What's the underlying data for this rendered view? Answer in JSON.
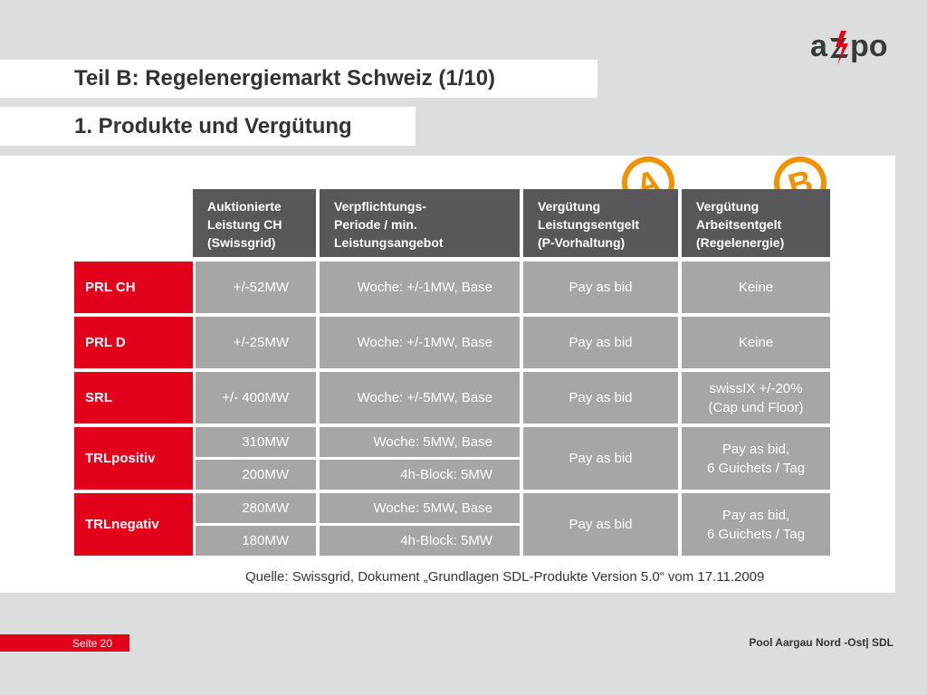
{
  "brand": {
    "logo_text": "axpo",
    "red": "#e2001a",
    "dark": "#58585a",
    "cell_gray": "#a6a6a6",
    "badge_orange": "#f39200"
  },
  "title": "Teil B:  Regelenergiemarkt Schweiz (1/10)",
  "subtitle": "1. Produkte und Vergütung",
  "badges": {
    "a": "A",
    "b": "B"
  },
  "table": {
    "headers": [
      "Auktionierte\nLeistung CH\n(Swissgrid)",
      "Verpflichtungs-\nPeriode / min.\nLeistungsangebot",
      "Vergütung\nLeistungsentgelt\n(P-Vorhaltung)",
      "Vergütung\nArbeitsentgelt\n(Regelenergie)"
    ],
    "rows": [
      {
        "label": "PRL CH",
        "leistung": "+/-52MW",
        "periode": "Woche: +/-1MW, Base",
        "leistungsentgelt": "Pay as bid",
        "arbeitsentgelt": "Keine"
      },
      {
        "label": "PRL D",
        "leistung": "+/-25MW",
        "periode": "Woche: +/-1MW, Base",
        "leistungsentgelt": "Pay as bid",
        "arbeitsentgelt": "Keine"
      },
      {
        "label": "SRL",
        "leistung": "+/- 400MW",
        "periode": "Woche: +/-5MW, Base",
        "leistungsentgelt": "Pay as bid",
        "arbeitsentgelt": "swissIX +/-20%\n(Cap und Floor)"
      },
      {
        "label": "TRLpositiv",
        "leistung_1": "310MW",
        "periode_1": "Woche: 5MW, Base",
        "leistung_2": "200MW",
        "periode_2": "4h-Block: 5MW",
        "leistungsentgelt": "Pay as bid",
        "arbeitsentgelt": "Pay as bid,\n6 Guichets / Tag"
      },
      {
        "label": "TRLnegativ",
        "leistung_1": "280MW",
        "periode_1": "Woche: 5MW, Base",
        "leistung_2": "180MW",
        "periode_2": "4h-Block: 5MW",
        "leistungsentgelt": "Pay as bid",
        "arbeitsentgelt": "Pay as bid,\n6 Guichets / Tag"
      }
    ]
  },
  "source": "Quelle: Swissgrid, Dokument „Grundlagen SDL-Produkte Version 5.0“ vom 17.11.2009",
  "footer": {
    "page": "Seite 20",
    "pool": "Pool Aargau Nord -Ost| SDL"
  }
}
